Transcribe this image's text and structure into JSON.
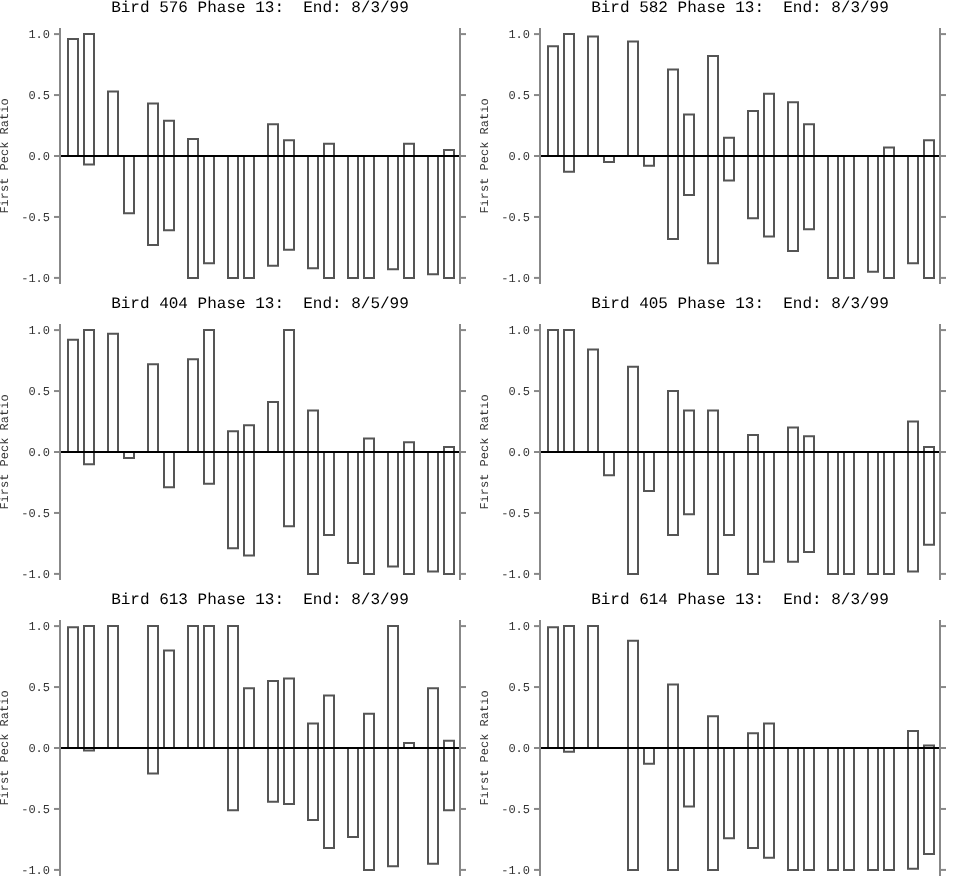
{
  "chart_data": [
    {
      "type": "bar",
      "title": "Bird 576 Phase 13:  End: 8/3/99",
      "ylabel": "First Peck Ratio",
      "categories": [
        null,
        null,
        null,
        null,
        null,
        null,
        null,
        null,
        null,
        null
      ],
      "ylim": [
        -1.05,
        1.05
      ],
      "yticks": [
        {
          "value": -1,
          "label": "-1.0"
        },
        {
          "value": -0.5,
          "label": "-0.5"
        },
        {
          "value": 0,
          "label": "0.0"
        },
        {
          "value": 0.5,
          "label": "0.5"
        },
        {
          "value": 1,
          "label": "1.0"
        }
      ],
      "tick_labels": "y",
      "ref_lines": [
        {
          "axis": "y",
          "value": 0,
          "color": "#000000"
        }
      ],
      "series": [
        {
          "color": "#555555",
          "base": [
            0,
            0,
            -0.73,
            -1,
            -1,
            -0.9,
            -0.92,
            -1,
            -0.93,
            -0.97
          ],
          "values": [
            0.96,
            0.53,
            1.16,
            1.14,
            1,
            1.16,
            0.92,
            1,
            0.93,
            0.97
          ]
        },
        {
          "color": "#555555",
          "base": [
            -0.07,
            -0.47,
            -0.61,
            -0.88,
            -1,
            -0.77,
            -1,
            -1,
            -1,
            -1
          ],
          "values": [
            1.07,
            0.47,
            0.9,
            0.88,
            1,
            0.9,
            1.1,
            1,
            1.1,
            1.05
          ]
        }
      ]
    },
    {
      "type": "bar",
      "title": "Bird 582 Phase 13:  End: 8/3/99",
      "ylabel": "First Peck Ratio",
      "categories": [
        null,
        null,
        null,
        null,
        null,
        null,
        null,
        null,
        null,
        null
      ],
      "ylim": [
        -1.05,
        1.05
      ],
      "yticks": [
        {
          "value": -1,
          "label": "-1.0"
        },
        {
          "value": -0.5,
          "label": "-0.5"
        },
        {
          "value": 0,
          "label": "0.0"
        },
        {
          "value": 0.5,
          "label": "0.5"
        },
        {
          "value": 1,
          "label": "1.0"
        }
      ],
      "tick_labels": "y",
      "ref_lines": [
        {
          "axis": "y",
          "value": 0,
          "color": "#000000"
        }
      ],
      "series": [
        {
          "color": "#555555",
          "base": [
            0,
            0,
            0,
            -0.68,
            -0.88,
            -0.51,
            -0.78,
            -1,
            -0.95,
            -0.88
          ],
          "values": [
            0.9,
            0.98,
            0.94,
            1.39,
            1.7,
            0.88,
            1.22,
            1,
            0.95,
            0.88
          ]
        },
        {
          "color": "#555555",
          "base": [
            -0.13,
            -0.05,
            -0.08,
            -0.32,
            -0.2,
            -0.66,
            -0.6,
            -1,
            -1,
            -1
          ],
          "values": [
            1.13,
            0.05,
            0.08,
            0.66,
            0.35,
            1.17,
            0.86,
            1,
            1.07,
            1.13
          ]
        }
      ]
    },
    {
      "type": "bar",
      "title": "Bird 404 Phase 13:  End: 8/5/99",
      "ylabel": "First Peck Ratio",
      "categories": [
        null,
        null,
        null,
        null,
        null,
        null,
        null,
        null,
        null,
        null
      ],
      "ylim": [
        -1.05,
        1.05
      ],
      "yticks": [
        {
          "value": -1,
          "label": "-1.0"
        },
        {
          "value": -0.5,
          "label": "-0.5"
        },
        {
          "value": 0,
          "label": "0.0"
        },
        {
          "value": 0.5,
          "label": "0.5"
        },
        {
          "value": 1,
          "label": "1.0"
        }
      ],
      "tick_labels": "y",
      "ref_lines": [
        {
          "axis": "y",
          "value": 0,
          "color": "#000000"
        }
      ],
      "series": [
        {
          "color": "#555555",
          "base": [
            0,
            0,
            0,
            0,
            -0.79,
            0,
            -1,
            -0.91,
            -0.94,
            -0.98
          ],
          "values": [
            0.92,
            0.97,
            0.72,
            0.76,
            0.96,
            0.41,
            1.34,
            0.91,
            0.94,
            0.98
          ]
        },
        {
          "color": "#555555",
          "base": [
            -0.1,
            -0.05,
            -0.29,
            -0.26,
            -0.85,
            -0.61,
            -0.68,
            -1,
            -1,
            -1
          ],
          "values": [
            1.1,
            0.05,
            0.29,
            1.26,
            1.07,
            1.61,
            0.68,
            1.11,
            1.08,
            1.04
          ]
        }
      ]
    },
    {
      "type": "bar",
      "title": "Bird 405 Phase 13:  End: 8/3/99",
      "ylabel": "First Peck Ratio",
      "categories": [
        null,
        null,
        null,
        null,
        null,
        null,
        null,
        null,
        null,
        null
      ],
      "ylim": [
        -1.05,
        1.05
      ],
      "yticks": [
        {
          "value": -1,
          "label": "-1.0"
        },
        {
          "value": -0.5,
          "label": "-0.5"
        },
        {
          "value": 0,
          "label": "0.0"
        },
        {
          "value": 0.5,
          "label": "0.5"
        },
        {
          "value": 1,
          "label": "1.0"
        }
      ],
      "tick_labels": "y",
      "ref_lines": [
        {
          "axis": "y",
          "value": 0,
          "color": "#000000"
        }
      ],
      "series": [
        {
          "color": "#555555",
          "base": [
            0,
            0,
            -1,
            -0.68,
            -1,
            -1,
            -0.9,
            -1,
            -1,
            -0.98
          ],
          "values": [
            1,
            0.84,
            1.7,
            1.18,
            1.34,
            1.14,
            1.1,
            1,
            1,
            1.23
          ]
        },
        {
          "color": "#555555",
          "base": [
            0,
            -0.19,
            -0.32,
            -0.51,
            -0.68,
            -0.9,
            -0.82,
            -1,
            -1,
            -0.76
          ],
          "values": [
            1,
            0.19,
            0.32,
            0.85,
            0.68,
            0.9,
            0.95,
            1,
            1,
            0.8
          ]
        }
      ]
    },
    {
      "type": "bar",
      "title": "Bird 613 Phase 13:  End: 8/3/99",
      "ylabel": "First Peck Ratio",
      "categories": [
        null,
        null,
        null,
        null,
        null,
        null,
        null,
        null,
        null,
        null
      ],
      "ylim": [
        -1.05,
        1.05
      ],
      "yticks": [
        {
          "value": -1,
          "label": "-1.0"
        },
        {
          "value": -0.5,
          "label": "-0.5"
        },
        {
          "value": 0,
          "label": "0.0"
        },
        {
          "value": 0.5,
          "label": "0.5"
        },
        {
          "value": 1,
          "label": "1.0"
        }
      ],
      "tick_labels": "y",
      "ref_lines": [
        {
          "axis": "y",
          "value": 0,
          "color": "#000000"
        }
      ],
      "series": [
        {
          "color": "#555555",
          "base": [
            0,
            0,
            -0.21,
            0,
            -0.51,
            -0.44,
            -0.59,
            -0.73,
            -0.97,
            -0.95
          ],
          "values": [
            0.99,
            1,
            1.21,
            1,
            1.51,
            0.99,
            0.79,
            0.73,
            1.97,
            1.44
          ]
        },
        {
          "color": "#555555",
          "base": [
            -0.02,
            null,
            0,
            0,
            0,
            -0.46,
            -0.82,
            -1,
            0,
            -0.51
          ],
          "values": [
            1.02,
            null,
            0.8,
            1,
            0.49,
            1.03,
            1.25,
            1.28,
            0.04,
            0.57
          ]
        }
      ]
    },
    {
      "type": "bar",
      "title": "Bird 614 Phase 13:  End: 8/3/99",
      "ylabel": "First Peck Ratio",
      "categories": [
        null,
        null,
        null,
        null,
        null,
        null,
        null,
        null,
        null,
        null
      ],
      "ylim": [
        -1.05,
        1.05
      ],
      "yticks": [
        {
          "value": -1,
          "label": "-1.0"
        },
        {
          "value": -0.5,
          "label": "-0.5"
        },
        {
          "value": 0,
          "label": "0.0"
        },
        {
          "value": 0.5,
          "label": "0.5"
        },
        {
          "value": 1,
          "label": "1.0"
        }
      ],
      "tick_labels": "y",
      "ref_lines": [
        {
          "axis": "y",
          "value": 0,
          "color": "#000000"
        }
      ],
      "series": [
        {
          "color": "#555555",
          "base": [
            0,
            0,
            -1,
            -1,
            -1,
            -0.82,
            -1,
            -1,
            -1,
            -0.99
          ],
          "values": [
            0.99,
            1,
            1.88,
            1.52,
            1.26,
            0.94,
            1,
            1,
            1,
            1.13
          ]
        },
        {
          "color": "#555555",
          "base": [
            -0.03,
            null,
            -0.13,
            -0.48,
            -0.74,
            -0.9,
            -1,
            -1,
            -1,
            -0.87
          ],
          "values": [
            1.03,
            null,
            0.13,
            0.48,
            0.74,
            1.1,
            1,
            1,
            1,
            0.89
          ]
        }
      ]
    }
  ]
}
